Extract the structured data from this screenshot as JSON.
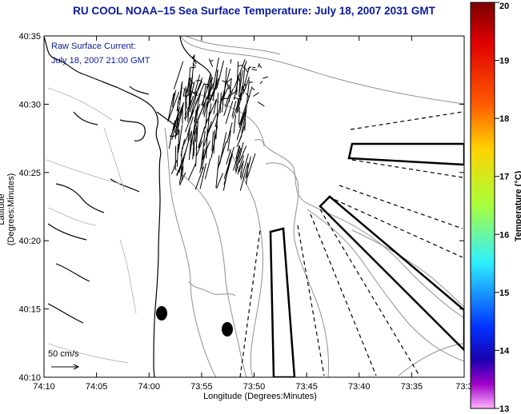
{
  "title": "RU COOL  NOAA–15  Sea Surface Temperature:  July 18, 2007 2031 GMT",
  "annotation": {
    "line1": "Raw Surface Current:",
    "line2": "July 18, 2007 21:00 GMT"
  },
  "scale_label": "50 cm/s",
  "axes": {
    "xlabel": "Longitude (Degrees:Minutes)",
    "ylabel": "Latitude (Degrees:Minutes)",
    "x_ticks": [
      "74:10",
      "74:05",
      "74:00",
      "73:55",
      "73:50",
      "73:45",
      "73:40",
      "73:35",
      "73:3"
    ],
    "y_ticks": [
      "40:35",
      "40:30",
      "40:25",
      "40:20",
      "40:15",
      "40:10"
    ]
  },
  "colorbar": {
    "label": "Temperature (°C)",
    "ticks": [
      "20",
      "19",
      "18",
      "17",
      "16",
      "15",
      "14",
      "13"
    ],
    "colors": [
      "#7a0000",
      "#e00000",
      "#ff5a00",
      "#ffd200",
      "#a8ff3c",
      "#2ef0ff",
      "#0032ff",
      "#1a00b0",
      "#a000c8",
      "#ffb4ff"
    ]
  },
  "map": {
    "coastline_color": "#000000",
    "contour_color": "#909090",
    "feature_color": "#000000"
  }
}
